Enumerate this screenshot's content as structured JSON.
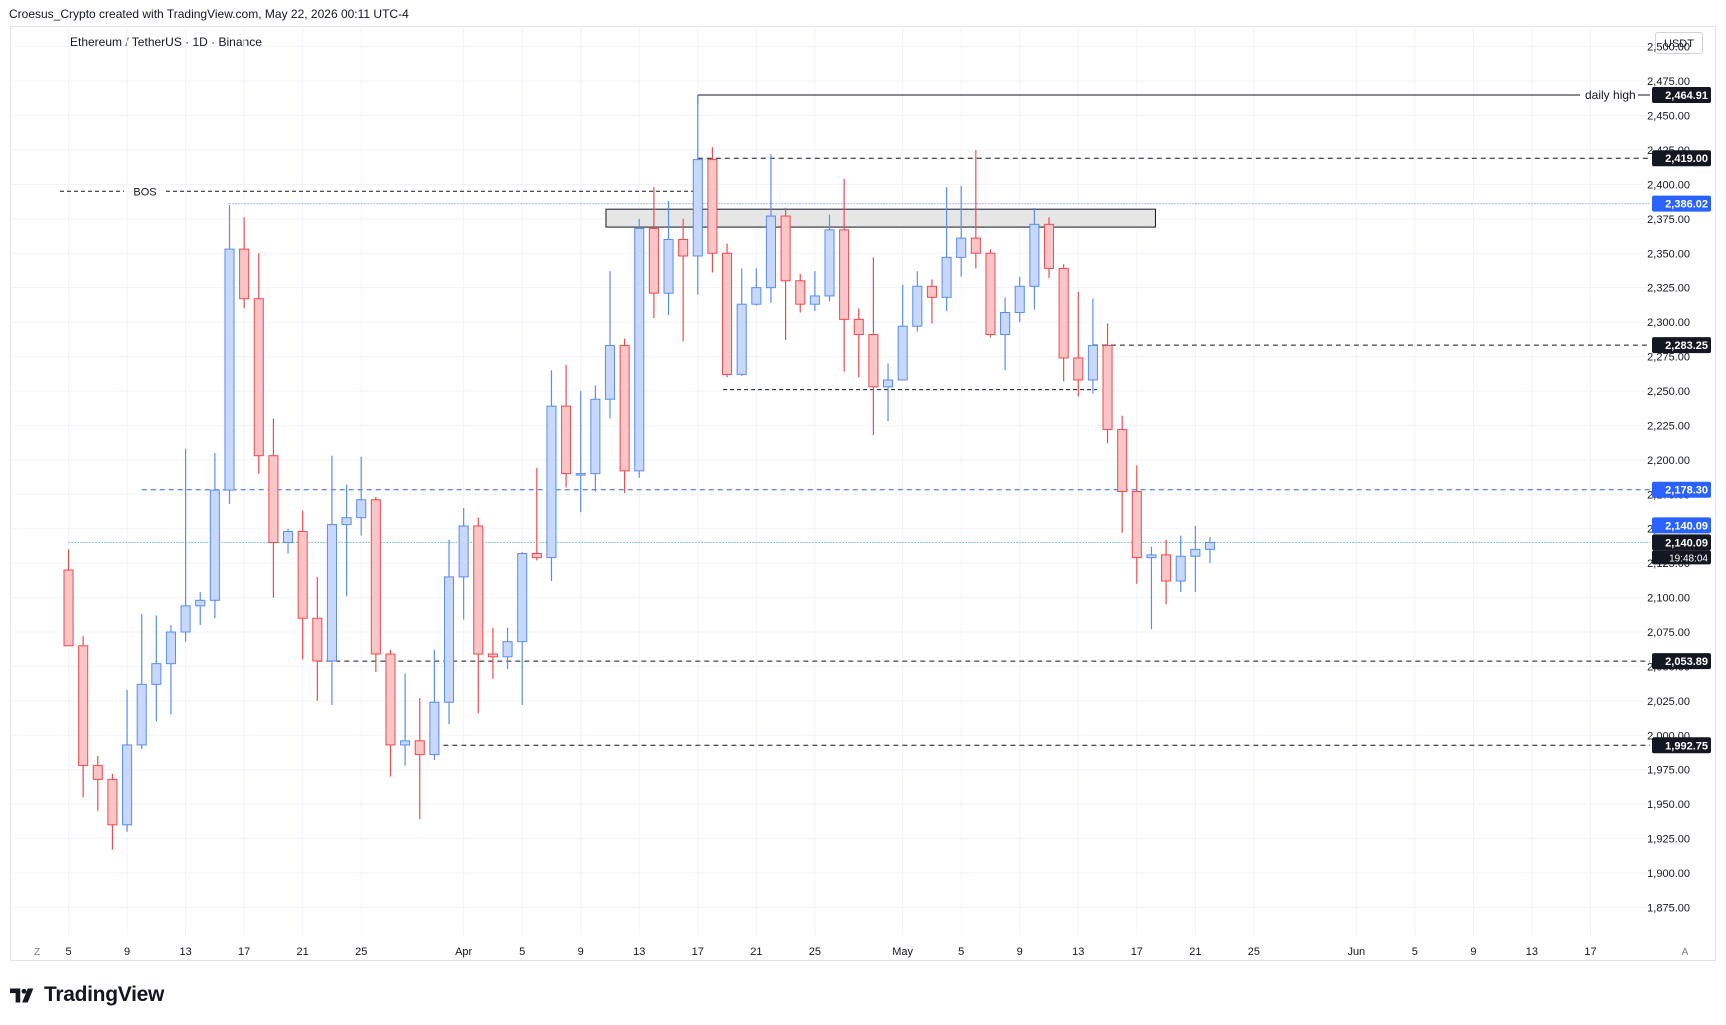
{
  "header": {
    "credit": "Croesus_Crypto created with TradingView.com, May 22, 2026 00:11 UTC-4"
  },
  "chart_header": {
    "symbol": "Ethereum / TetherUS · 1D · Binance",
    "currency": "USDT"
  },
  "footer": {
    "brand": "TradingView"
  },
  "colors": {
    "up": "#5b8def",
    "up_fill": "#c7d8fb",
    "down": "#ef4a4f",
    "down_fill": "#f9c5c6",
    "grid": "#f0f3fa"
  },
  "corner_labels": {
    "left": "Z",
    "right": "A"
  },
  "chart_data": {
    "type": "candlestick",
    "y_axis": {
      "ticks": [
        1875,
        1900,
        1925,
        1950,
        1975,
        2000,
        2025,
        2050,
        2075,
        2100,
        2125,
        2150,
        2175,
        2200,
        2225,
        2250,
        2275,
        2300,
        2325,
        2350,
        2375,
        2400,
        2425,
        2450,
        2475,
        2500
      ],
      "tick_labels": [
        "1,875.00",
        "1,900.00",
        "1,925.00",
        "1,950.00",
        "1,975.00",
        "2,000.00",
        "2,025.00",
        "2,050.00",
        "2,075.00",
        "2,100.00",
        "2,125.00",
        "2,150.00",
        "2,175.00",
        "2,200.00",
        "2,225.00",
        "2,250.00",
        "2,275.00",
        "2,300.00",
        "2,325.00",
        "2,350.00",
        "2,375.00",
        "2,400.00",
        "2,425.00",
        "2,450.00",
        "2,475.00",
        "2,500.00"
      ],
      "range": [
        1855,
        2515
      ]
    },
    "x_axis": {
      "ticks": [
        {
          "date": "2026-03-05",
          "label": "5"
        },
        {
          "date": "2026-03-09",
          "label": "9"
        },
        {
          "date": "2026-03-13",
          "label": "13"
        },
        {
          "date": "2026-03-17",
          "label": "17"
        },
        {
          "date": "2026-03-21",
          "label": "21"
        },
        {
          "date": "2026-03-25",
          "label": "25"
        },
        {
          "date": "2026-04-01",
          "label": "Apr"
        },
        {
          "date": "2026-04-05",
          "label": "5"
        },
        {
          "date": "2026-04-09",
          "label": "9"
        },
        {
          "date": "2026-04-13",
          "label": "13"
        },
        {
          "date": "2026-04-17",
          "label": "17"
        },
        {
          "date": "2026-04-21",
          "label": "21"
        },
        {
          "date": "2026-04-25",
          "label": "25"
        },
        {
          "date": "2026-05-01",
          "label": "May"
        },
        {
          "date": "2026-05-05",
          "label": "5"
        },
        {
          "date": "2026-05-09",
          "label": "9"
        },
        {
          "date": "2026-05-13",
          "label": "13"
        },
        {
          "date": "2026-05-17",
          "label": "17"
        },
        {
          "date": "2026-05-21",
          "label": "21"
        },
        {
          "date": "2026-05-25",
          "label": "25"
        },
        {
          "date": "2026-06-01",
          "label": "Jun"
        },
        {
          "date": "2026-06-05",
          "label": "5"
        },
        {
          "date": "2026-06-09",
          "label": "9"
        },
        {
          "date": "2026-06-13",
          "label": "13"
        },
        {
          "date": "2026-06-17",
          "label": "17"
        }
      ],
      "range": [
        "2026-03-01",
        "2026-06-21"
      ]
    },
    "candles": [
      {
        "date": "2026-03-05",
        "o": 2120,
        "h": 2135,
        "l": 2065,
        "c": 2065
      },
      {
        "date": "2026-03-06",
        "o": 2065,
        "h": 2072,
        "l": 1955,
        "c": 1978
      },
      {
        "date": "2026-03-07",
        "o": 1978,
        "h": 1985,
        "l": 1945,
        "c": 1968
      },
      {
        "date": "2026-03-08",
        "o": 1968,
        "h": 1972,
        "l": 1917,
        "c": 1935
      },
      {
        "date": "2026-03-09",
        "o": 1935,
        "h": 2033,
        "l": 1930,
        "c": 1993
      },
      {
        "date": "2026-03-10",
        "o": 1993,
        "h": 2088,
        "l": 1990,
        "c": 2037
      },
      {
        "date": "2026-03-11",
        "o": 2037,
        "h": 2087,
        "l": 2010,
        "c": 2052
      },
      {
        "date": "2026-03-12",
        "o": 2052,
        "h": 2080,
        "l": 2015,
        "c": 2075
      },
      {
        "date": "2026-03-13",
        "o": 2075,
        "h": 2208,
        "l": 2068,
        "c": 2094
      },
      {
        "date": "2026-03-14",
        "o": 2094,
        "h": 2104,
        "l": 2080,
        "c": 2098
      },
      {
        "date": "2026-03-15",
        "o": 2098,
        "h": 2205,
        "l": 2085,
        "c": 2178
      },
      {
        "date": "2026-03-16",
        "o": 2178,
        "h": 2385,
        "l": 2168,
        "c": 2353
      },
      {
        "date": "2026-03-17",
        "o": 2353,
        "h": 2376,
        "l": 2310,
        "c": 2317
      },
      {
        "date": "2026-03-18",
        "o": 2317,
        "h": 2350,
        "l": 2190,
        "c": 2203
      },
      {
        "date": "2026-03-19",
        "o": 2203,
        "h": 2230,
        "l": 2100,
        "c": 2140
      },
      {
        "date": "2026-03-20",
        "o": 2140,
        "h": 2150,
        "l": 2132,
        "c": 2148
      },
      {
        "date": "2026-03-21",
        "o": 2148,
        "h": 2163,
        "l": 2055,
        "c": 2085
      },
      {
        "date": "2026-03-22",
        "o": 2085,
        "h": 2115,
        "l": 2025,
        "c": 2054
      },
      {
        "date": "2026-03-23",
        "o": 2054,
        "h": 2203,
        "l": 2022,
        "c": 2153
      },
      {
        "date": "2026-03-24",
        "o": 2153,
        "h": 2182,
        "l": 2101,
        "c": 2158
      },
      {
        "date": "2026-03-25",
        "o": 2158,
        "h": 2202,
        "l": 2145,
        "c": 2171
      },
      {
        "date": "2026-03-26",
        "o": 2171,
        "h": 2173,
        "l": 2046,
        "c": 2059
      },
      {
        "date": "2026-03-27",
        "o": 2059,
        "h": 2062,
        "l": 1970,
        "c": 1993
      },
      {
        "date": "2026-03-28",
        "o": 1993,
        "h": 2045,
        "l": 1978,
        "c": 1996
      },
      {
        "date": "2026-03-29",
        "o": 1996,
        "h": 2027,
        "l": 1939,
        "c": 1986
      },
      {
        "date": "2026-03-30",
        "o": 1986,
        "h": 2062,
        "l": 1982,
        "c": 2024
      },
      {
        "date": "2026-03-31",
        "o": 2024,
        "h": 2142,
        "l": 2008,
        "c": 2115
      },
      {
        "date": "2026-04-01",
        "o": 2115,
        "h": 2165,
        "l": 2084,
        "c": 2152
      },
      {
        "date": "2026-04-02",
        "o": 2152,
        "h": 2158,
        "l": 2016,
        "c": 2059
      },
      {
        "date": "2026-04-03",
        "o": 2059,
        "h": 2078,
        "l": 2041,
        "c": 2057
      },
      {
        "date": "2026-04-04",
        "o": 2057,
        "h": 2078,
        "l": 2048,
        "c": 2068
      },
      {
        "date": "2026-04-05",
        "o": 2068,
        "h": 2133,
        "l": 2022,
        "c": 2132
      },
      {
        "date": "2026-04-06",
        "o": 2132,
        "h": 2194,
        "l": 2127,
        "c": 2129
      },
      {
        "date": "2026-04-07",
        "o": 2129,
        "h": 2265,
        "l": 2112,
        "c": 2239
      },
      {
        "date": "2026-04-08",
        "o": 2239,
        "h": 2269,
        "l": 2180,
        "c": 2190
      },
      {
        "date": "2026-04-09",
        "o": 2190,
        "h": 2250,
        "l": 2162,
        "c": 2190
      },
      {
        "date": "2026-04-10",
        "o": 2190,
        "h": 2254,
        "l": 2177,
        "c": 2244
      },
      {
        "date": "2026-04-11",
        "o": 2244,
        "h": 2337,
        "l": 2230,
        "c": 2283
      },
      {
        "date": "2026-04-12",
        "o": 2283,
        "h": 2288,
        "l": 2176,
        "c": 2192
      },
      {
        "date": "2026-04-13",
        "o": 2192,
        "h": 2375,
        "l": 2187,
        "c": 2368
      },
      {
        "date": "2026-04-14",
        "o": 2368,
        "h": 2398,
        "l": 2303,
        "c": 2321
      },
      {
        "date": "2026-04-15",
        "o": 2321,
        "h": 2388,
        "l": 2305,
        "c": 2360
      },
      {
        "date": "2026-04-16",
        "o": 2360,
        "h": 2375,
        "l": 2286,
        "c": 2348
      },
      {
        "date": "2026-04-17",
        "o": 2348,
        "h": 2465,
        "l": 2320,
        "c": 2418
      },
      {
        "date": "2026-04-18",
        "o": 2418,
        "h": 2427,
        "l": 2336,
        "c": 2350
      },
      {
        "date": "2026-04-19",
        "o": 2350,
        "h": 2357,
        "l": 2260,
        "c": 2262
      },
      {
        "date": "2026-04-20",
        "o": 2262,
        "h": 2339,
        "l": 2261,
        "c": 2313
      },
      {
        "date": "2026-04-21",
        "o": 2313,
        "h": 2339,
        "l": 2312,
        "c": 2325
      },
      {
        "date": "2026-04-22",
        "o": 2325,
        "h": 2422,
        "l": 2314,
        "c": 2377
      },
      {
        "date": "2026-04-23",
        "o": 2377,
        "h": 2383,
        "l": 2287,
        "c": 2330
      },
      {
        "date": "2026-04-24",
        "o": 2330,
        "h": 2335,
        "l": 2307,
        "c": 2313
      },
      {
        "date": "2026-04-25",
        "o": 2313,
        "h": 2337,
        "l": 2308,
        "c": 2319
      },
      {
        "date": "2026-04-26",
        "o": 2319,
        "h": 2378,
        "l": 2315,
        "c": 2367
      },
      {
        "date": "2026-04-27",
        "o": 2367,
        "h": 2404,
        "l": 2264,
        "c": 2302
      },
      {
        "date": "2026-04-28",
        "o": 2302,
        "h": 2310,
        "l": 2260,
        "c": 2291
      },
      {
        "date": "2026-04-29",
        "o": 2291,
        "h": 2347,
        "l": 2218,
        "c": 2253
      },
      {
        "date": "2026-04-30",
        "o": 2253,
        "h": 2270,
        "l": 2228,
        "c": 2258
      },
      {
        "date": "2026-05-01",
        "o": 2258,
        "h": 2327,
        "l": 2258,
        "c": 2297
      },
      {
        "date": "2026-05-02",
        "o": 2297,
        "h": 2337,
        "l": 2293,
        "c": 2326
      },
      {
        "date": "2026-05-03",
        "o": 2326,
        "h": 2331,
        "l": 2299,
        "c": 2318
      },
      {
        "date": "2026-05-04",
        "o": 2318,
        "h": 2398,
        "l": 2308,
        "c": 2347
      },
      {
        "date": "2026-05-05",
        "o": 2347,
        "h": 2399,
        "l": 2333,
        "c": 2361
      },
      {
        "date": "2026-05-06",
        "o": 2361,
        "h": 2425,
        "l": 2339,
        "c": 2350
      },
      {
        "date": "2026-05-07",
        "o": 2350,
        "h": 2353,
        "l": 2289,
        "c": 2291
      },
      {
        "date": "2026-05-08",
        "o": 2291,
        "h": 2318,
        "l": 2265,
        "c": 2307
      },
      {
        "date": "2026-05-09",
        "o": 2307,
        "h": 2333,
        "l": 2300,
        "c": 2326
      },
      {
        "date": "2026-05-10",
        "o": 2326,
        "h": 2383,
        "l": 2309,
        "c": 2371
      },
      {
        "date": "2026-05-11",
        "o": 2371,
        "h": 2376,
        "l": 2332,
        "c": 2339
      },
      {
        "date": "2026-05-12",
        "o": 2339,
        "h": 2342,
        "l": 2257,
        "c": 2274
      },
      {
        "date": "2026-05-13",
        "o": 2274,
        "h": 2322,
        "l": 2246,
        "c": 2258
      },
      {
        "date": "2026-05-14",
        "o": 2258,
        "h": 2317,
        "l": 2248,
        "c": 2283
      },
      {
        "date": "2026-05-15",
        "o": 2283,
        "h": 2299,
        "l": 2212,
        "c": 2222
      },
      {
        "date": "2026-05-16",
        "o": 2222,
        "h": 2232,
        "l": 2147,
        "c": 2177
      },
      {
        "date": "2026-05-17",
        "o": 2177,
        "h": 2196,
        "l": 2110,
        "c": 2129
      },
      {
        "date": "2026-05-18",
        "o": 2129,
        "h": 2137,
        "l": 2077,
        "c": 2131
      },
      {
        "date": "2026-05-19",
        "o": 2131,
        "h": 2142,
        "l": 2095,
        "c": 2112
      },
      {
        "date": "2026-05-20",
        "o": 2112,
        "h": 2145,
        "l": 2104,
        "c": 2130
      },
      {
        "date": "2026-05-21",
        "o": 2130,
        "h": 2152,
        "l": 2104,
        "c": 2135
      },
      {
        "date": "2026-05-22",
        "o": 2135,
        "h": 2144,
        "l": 2125,
        "c": 2140
      }
    ],
    "levels": [
      {
        "price": 2464.91,
        "label": "2,464.91",
        "style": "solid",
        "start": "2026-04-17",
        "color": "#131722",
        "badge_bg": "#131722",
        "name_text": "daily high"
      },
      {
        "price": 2419.0,
        "label": "2,419.00",
        "style": "dashed",
        "start": "2026-04-17",
        "color": "#131722",
        "badge_bg": "#131722"
      },
      {
        "price": 2386.02,
        "label": "2,386.02",
        "style": "dotted",
        "start": "2026-03-16",
        "color": "#4f7df3",
        "badge_bg": "#2962ff"
      },
      {
        "price": 2283.25,
        "label": "2,283.25",
        "style": "dashed",
        "start": "2026-05-14",
        "color": "#131722",
        "badge_bg": "#131722"
      },
      {
        "price": 2178.3,
        "label": "2,178.30",
        "style": "dashed",
        "start": "2026-03-10",
        "color": "#2962ff",
        "badge_bg": "#2962ff"
      },
      {
        "price": 2140.09,
        "label": "2,140.09",
        "style": "dotted",
        "start": "2026-03-05",
        "color": "#089981",
        "badge_bg": "#131722",
        "badge_sub": "19:48:04"
      },
      {
        "price": 2053.89,
        "label": "2,053.89",
        "style": "dashed",
        "start": "2026-03-22",
        "color": "#131722",
        "badge_bg": "#131722"
      },
      {
        "price": 1992.75,
        "label": "1,992.75",
        "style": "dashed",
        "start": "2026-03-30",
        "color": "#131722",
        "badge_bg": "#131722"
      }
    ],
    "last_price_blue_badge": "2,140.09",
    "annotations": [
      {
        "type": "hline",
        "text": "BOS",
        "price": 2395,
        "start": "2026-03-01",
        "end": "2026-04-17"
      },
      {
        "type": "hline",
        "price": 2251,
        "start": "2026-04-19",
        "end": "2026-05-14"
      },
      {
        "type": "zone",
        "price_top": 2382,
        "price_bottom": 2369,
        "start": "2026-04-11",
        "end": "2026-05-18"
      }
    ]
  }
}
